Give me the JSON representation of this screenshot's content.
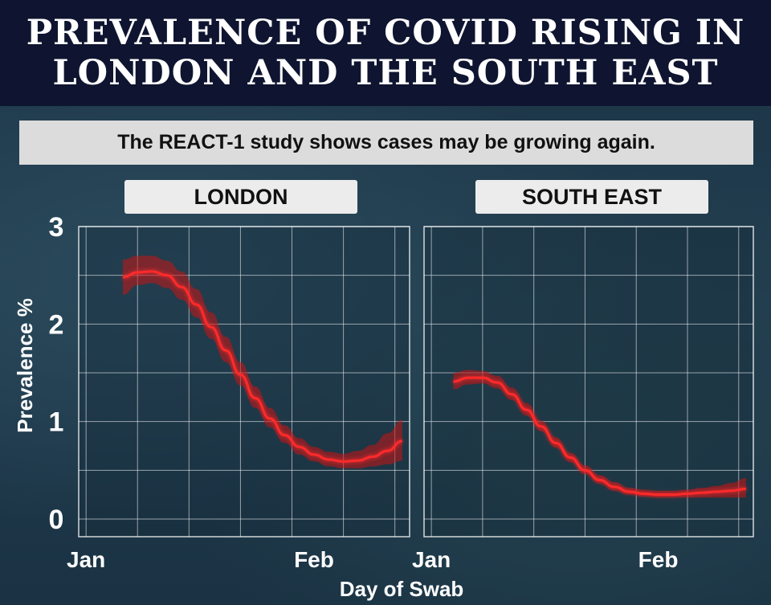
{
  "header": {
    "title": "PREVALENCE OF COVID RISING IN LONDON AND THE SOUTH EAST"
  },
  "subtitle": "The REACT-1 study shows cases may be growing again.",
  "colors": {
    "header_bg": "#0f1530",
    "line": "#ff2a2a",
    "band": "#c81414",
    "grid": "#ffffff"
  },
  "chart_data": [
    {
      "type": "line",
      "title": "LONDON",
      "xlabel": "Day of Swab",
      "ylabel": "Prevalence %",
      "x_ticks": [
        "Jan",
        "Feb"
      ],
      "y_ticks": [
        0,
        1,
        2,
        3
      ],
      "ylim": [
        0,
        3
      ],
      "xlim": [
        "2020-12-31",
        "2021-02-14"
      ],
      "grid": true,
      "series": [
        {
          "x": [
            "2021-01-06",
            "2021-01-08",
            "2021-01-10",
            "2021-01-12",
            "2021-01-14",
            "2021-01-16",
            "2021-01-18",
            "2021-01-20",
            "2021-01-22",
            "2021-01-24",
            "2021-01-26",
            "2021-01-28",
            "2021-01-30",
            "2021-02-01",
            "2021-02-03",
            "2021-02-05",
            "2021-02-07",
            "2021-02-09",
            "2021-02-11",
            "2021-02-13"
          ],
          "values": [
            2.48,
            2.53,
            2.54,
            2.5,
            2.38,
            2.2,
            1.97,
            1.73,
            1.48,
            1.24,
            1.03,
            0.86,
            0.74,
            0.66,
            0.61,
            0.59,
            0.6,
            0.64,
            0.7,
            0.8
          ],
          "lower": [
            2.3,
            2.4,
            2.42,
            2.37,
            2.25,
            2.07,
            1.85,
            1.61,
            1.37,
            1.14,
            0.94,
            0.78,
            0.66,
            0.59,
            0.54,
            0.52,
            0.52,
            0.54,
            0.56,
            0.6
          ],
          "upper": [
            2.66,
            2.7,
            2.7,
            2.65,
            2.54,
            2.36,
            2.12,
            1.87,
            1.61,
            1.36,
            1.14,
            0.96,
            0.83,
            0.74,
            0.69,
            0.67,
            0.7,
            0.76,
            0.88,
            1.02
          ]
        }
      ]
    },
    {
      "type": "line",
      "title": "SOUTH EAST",
      "xlabel": "",
      "ylabel": "",
      "x_ticks": [
        "Jan",
        "Feb"
      ],
      "y_ticks": [
        0,
        1,
        2,
        3
      ],
      "ylim": [
        0,
        3
      ],
      "xlim": [
        "2020-12-31",
        "2021-02-14"
      ],
      "grid": true,
      "series": [
        {
          "x": [
            "2021-01-04",
            "2021-01-06",
            "2021-01-08",
            "2021-01-10",
            "2021-01-12",
            "2021-01-14",
            "2021-01-16",
            "2021-01-18",
            "2021-01-20",
            "2021-01-22",
            "2021-01-24",
            "2021-01-26",
            "2021-01-28",
            "2021-01-30",
            "2021-02-01",
            "2021-02-03",
            "2021-02-05",
            "2021-02-07",
            "2021-02-09",
            "2021-02-11",
            "2021-02-13"
          ],
          "values": [
            1.41,
            1.45,
            1.45,
            1.4,
            1.28,
            1.12,
            0.95,
            0.78,
            0.63,
            0.5,
            0.4,
            0.33,
            0.28,
            0.26,
            0.25,
            0.25,
            0.26,
            0.27,
            0.28,
            0.29,
            0.31
          ],
          "lower": [
            1.33,
            1.38,
            1.39,
            1.34,
            1.22,
            1.06,
            0.9,
            0.73,
            0.58,
            0.46,
            0.36,
            0.29,
            0.25,
            0.23,
            0.22,
            0.22,
            0.22,
            0.22,
            0.22,
            0.22,
            0.22
          ],
          "upper": [
            1.5,
            1.53,
            1.52,
            1.47,
            1.35,
            1.19,
            1.01,
            0.84,
            0.68,
            0.55,
            0.45,
            0.38,
            0.32,
            0.3,
            0.29,
            0.29,
            0.3,
            0.32,
            0.34,
            0.37,
            0.42
          ]
        }
      ]
    }
  ]
}
